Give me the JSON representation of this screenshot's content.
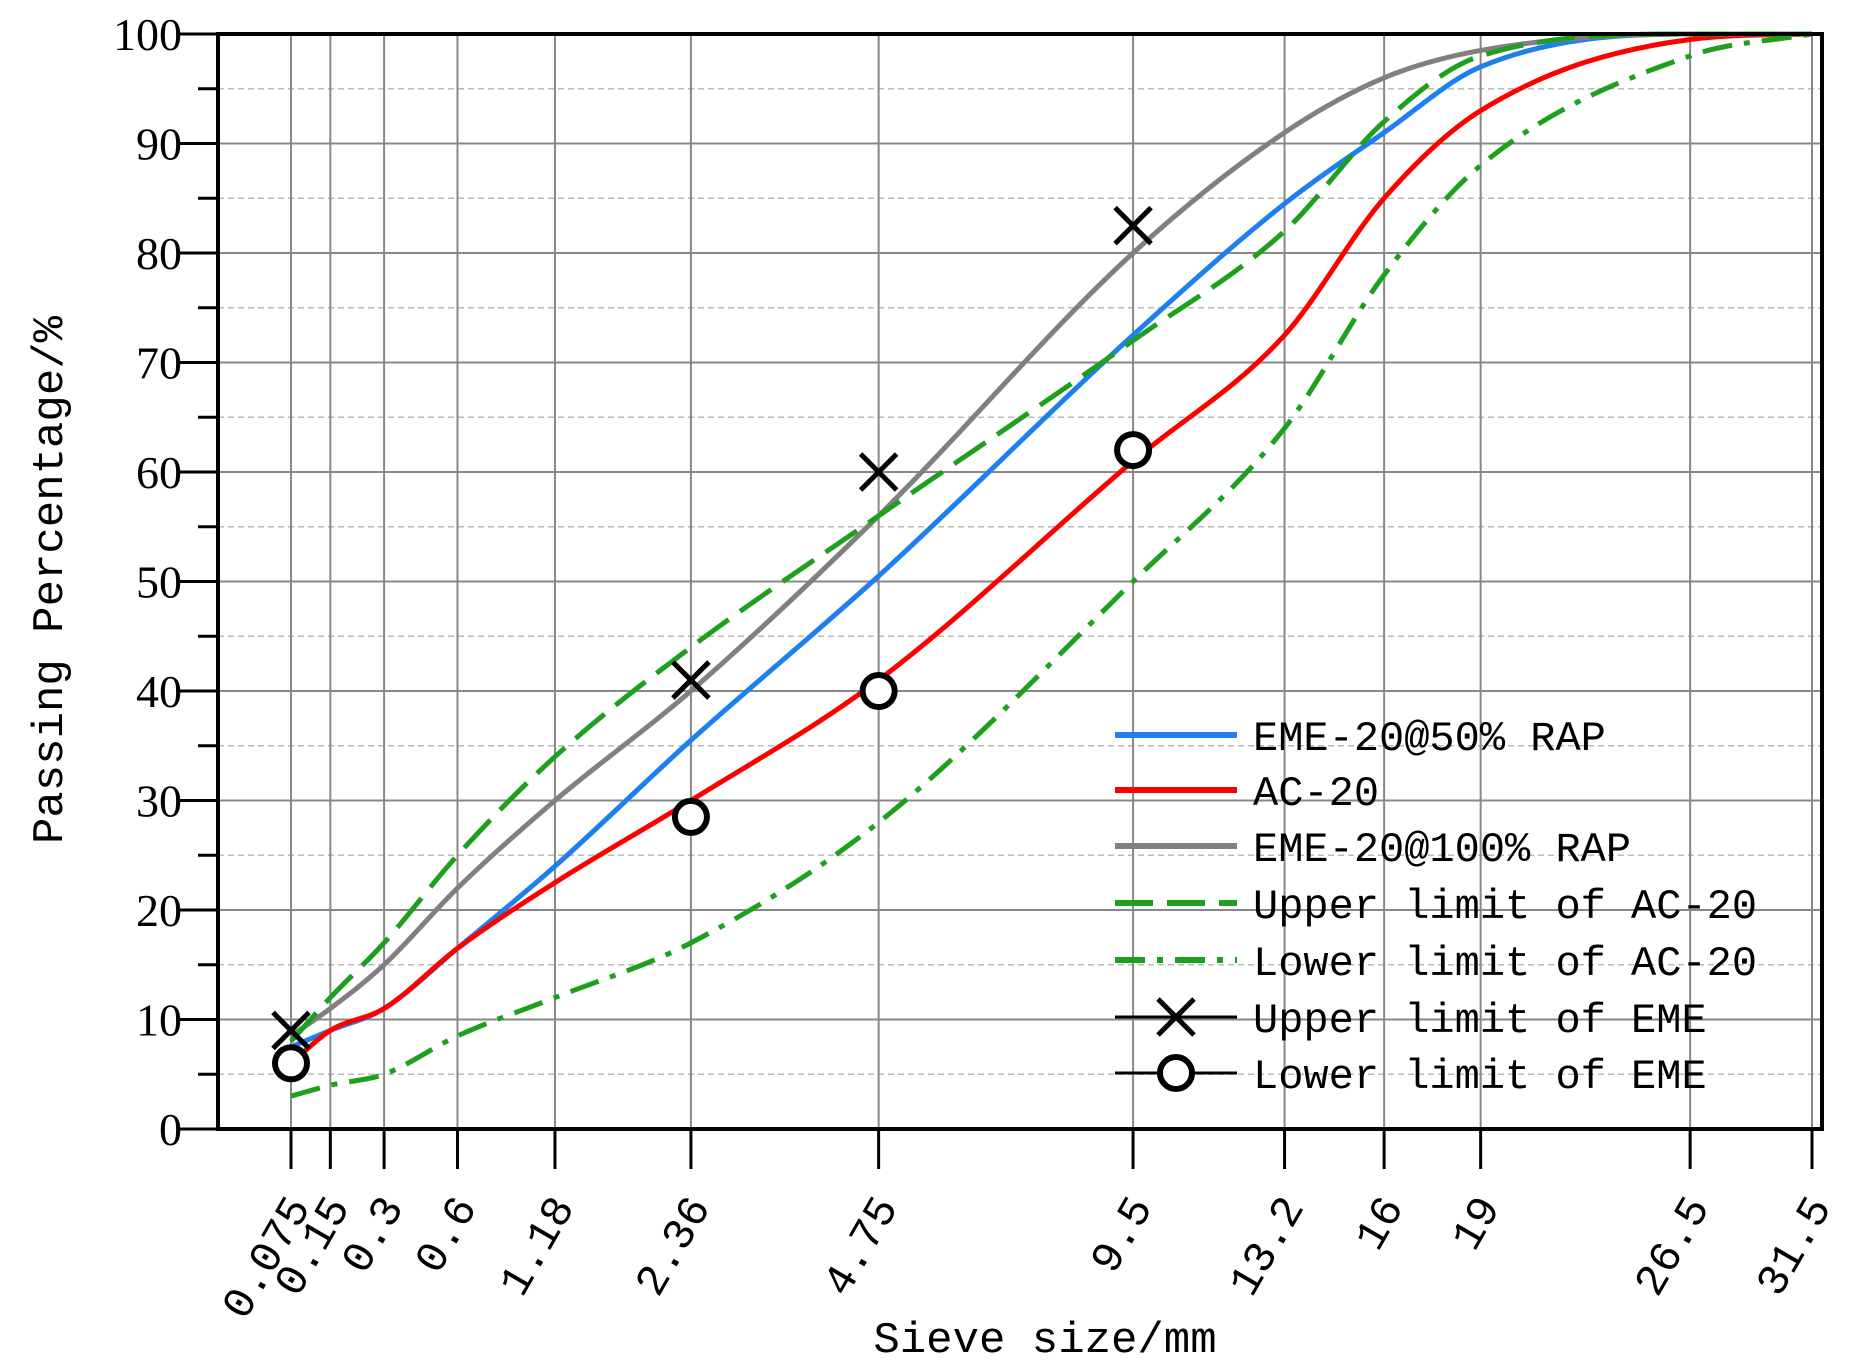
{
  "chart_data": {
    "type": "line",
    "title": "",
    "xlabel": "Sieve size/mm",
    "ylabel": "Passing Percentage/%",
    "ylim": [
      0,
      100
    ],
    "x_scale": "power-0.45",
    "x_ticks": [
      0.075,
      0.15,
      0.3,
      0.6,
      1.18,
      2.36,
      4.75,
      9.5,
      13.2,
      16,
      19,
      26.5,
      31.5
    ],
    "x_tick_labels": [
      "0.075",
      "0.15",
      "0.3",
      "0.6",
      "1.18",
      "2.36",
      "4.75",
      "9.5",
      "13.2",
      "16",
      "19",
      "26.5",
      "31.5"
    ],
    "y_ticks": [
      0,
      10,
      20,
      30,
      40,
      50,
      60,
      70,
      80,
      90,
      100
    ],
    "y_tick_labels": [
      "0",
      "10",
      "20",
      "30",
      "40",
      "50",
      "60",
      "70",
      "80",
      "90",
      "100"
    ],
    "grid": true,
    "legend_position": "lower-right",
    "series": [
      {
        "name": "EME-20@50% RAP",
        "style": "solid",
        "color": "#1E7FF0",
        "x": [
          0.075,
          0.15,
          0.3,
          0.6,
          1.18,
          2.36,
          4.75,
          9.5,
          13.2,
          16,
          19,
          26.5,
          31.5
        ],
        "values": [
          7.5,
          9,
          11,
          16.5,
          24,
          35.5,
          50.5,
          72.5,
          84.5,
          91,
          97,
          100,
          100
        ]
      },
      {
        "name": "AC-20",
        "style": "solid",
        "color": "#FF0000",
        "x": [
          0.075,
          0.15,
          0.3,
          0.6,
          1.18,
          2.36,
          4.75,
          9.5,
          13.2,
          16,
          19,
          26.5,
          31.5
        ],
        "values": [
          6,
          9,
          11,
          16.5,
          22.5,
          30,
          41,
          61,
          72.5,
          85,
          93,
          99.5,
          100
        ]
      },
      {
        "name": "EME-20@100% RAP",
        "style": "solid",
        "color": "#808080",
        "x": [
          0.075,
          0.15,
          0.3,
          0.6,
          1.18,
          2.36,
          4.75,
          9.5,
          13.2,
          16,
          19,
          26.5,
          31.5
        ],
        "values": [
          8.5,
          11,
          15,
          22,
          30,
          40,
          56,
          80,
          91,
          96,
          98.5,
          100,
          100
        ]
      },
      {
        "name": "Upper limit of AC-20",
        "style": "dashed",
        "color": "#1EA01E",
        "x": [
          0.075,
          0.15,
          0.3,
          0.6,
          1.18,
          2.36,
          4.75,
          9.5,
          13.2,
          16,
          19,
          26.5,
          31.5
        ],
        "values": [
          8,
          12,
          17,
          25,
          34,
          44,
          56,
          72,
          82,
          92,
          98,
          100,
          100
        ]
      },
      {
        "name": "Lower limit of AC-20",
        "style": "dashdot",
        "color": "#1EA01E",
        "x": [
          0.075,
          0.15,
          0.3,
          0.6,
          1.18,
          2.36,
          4.75,
          9.5,
          13.2,
          16,
          19,
          26.5,
          31.5
        ],
        "values": [
          3,
          4,
          5,
          8.5,
          12,
          17,
          28,
          50,
          64,
          78,
          88,
          98,
          100
        ]
      },
      {
        "name": "Upper limit of EME",
        "style": "marker-x",
        "color": "#000000",
        "x": [
          0.075,
          2.36,
          4.75,
          9.5
        ],
        "values": [
          9,
          41,
          60,
          82.5
        ]
      },
      {
        "name": "Lower limit of EME",
        "style": "marker-o",
        "color": "#000000",
        "x": [
          0.075,
          2.36,
          4.75,
          9.5
        ],
        "values": [
          6,
          28.5,
          40,
          62
        ]
      }
    ]
  }
}
